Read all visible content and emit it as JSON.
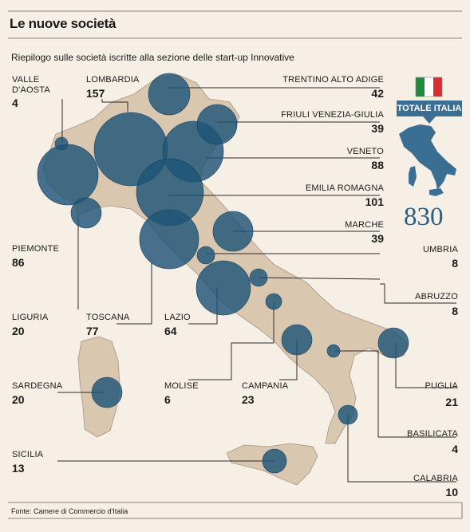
{
  "title": "Le nuove società",
  "subtitle": "Riepilogo sulle società iscritte alla sezione delle start-up Innovative",
  "total": {
    "label": "TOTALE ITALIA",
    "value": "830"
  },
  "source": "Fonte: Camere di Commercio d'Italia",
  "colors": {
    "bubble": "#1e5478",
    "land": "#d9c7b0",
    "background": "#f6efe5",
    "accent": "#3a6f93"
  },
  "regions": [
    {
      "key": "valle-daosta",
      "label": "VALLE\nD'AOSTA",
      "value": "4"
    },
    {
      "key": "lombardia",
      "label": "LOMBARDIA",
      "value": "157"
    },
    {
      "key": "piemonte",
      "label": "PIEMONTE",
      "value": "86"
    },
    {
      "key": "liguria",
      "label": "LIGURIA",
      "value": "20"
    },
    {
      "key": "toscana",
      "label": "TOSCANA",
      "value": "77"
    },
    {
      "key": "lazio",
      "label": "LAZIO",
      "value": "64"
    },
    {
      "key": "sardegna",
      "label": "SARDEGNA",
      "value": "20"
    },
    {
      "key": "molise",
      "label": "MOLISE",
      "value": "6"
    },
    {
      "key": "campania",
      "label": "CAMPANIA",
      "value": "23"
    },
    {
      "key": "sicilia",
      "label": "SICILIA",
      "value": "13"
    },
    {
      "key": "trentino",
      "label": "TRENTINO ALTO ADIGE",
      "value": "42"
    },
    {
      "key": "friuli",
      "label": "FRIULI VENEZIA-GIULIA",
      "value": "39"
    },
    {
      "key": "veneto",
      "label": "VENETO",
      "value": "88"
    },
    {
      "key": "emilia",
      "label": "EMILIA ROMAGNA",
      "value": "101"
    },
    {
      "key": "marche",
      "label": "MARCHE",
      "value": "39"
    },
    {
      "key": "umbria",
      "label": "UMBRIA",
      "value": "8"
    },
    {
      "key": "abruzzo",
      "label": "ABRUZZO",
      "value": "8"
    },
    {
      "key": "puglia",
      "label": "PUGLIA",
      "value": "21"
    },
    {
      "key": "basilicata",
      "label": "BASILICATA",
      "value": "4"
    },
    {
      "key": "calabria",
      "label": "CALABRIA",
      "value": "10"
    }
  ]
}
